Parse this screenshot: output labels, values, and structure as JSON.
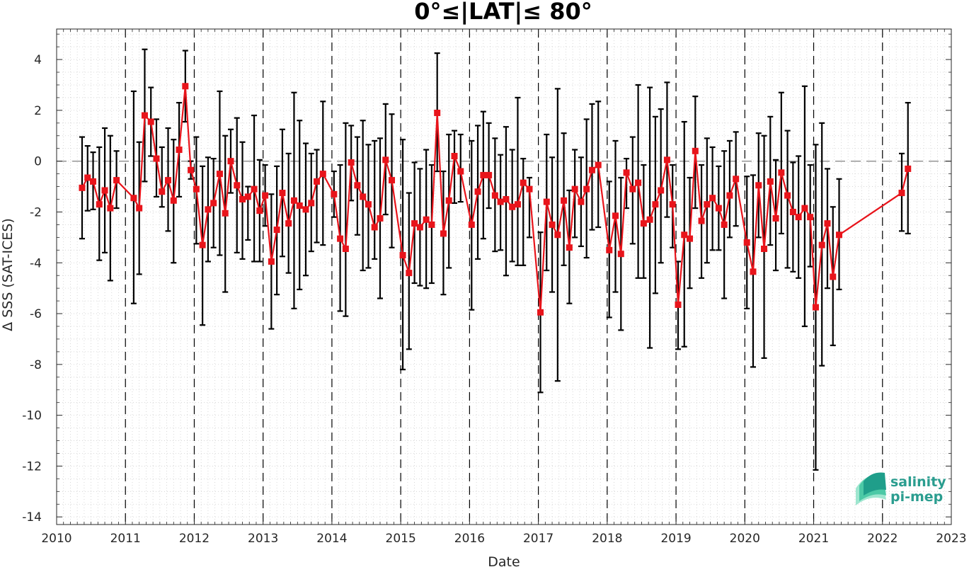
{
  "chart_data": {
    "type": "line",
    "title": "0°≤|LAT|≤ 80°",
    "xlabel": "Date",
    "ylabel": "Δ SSS (SAT-ICES)",
    "xlim": [
      2010,
      2023
    ],
    "ylim": [
      -14.3,
      5.2
    ],
    "x_ticks": [
      "2010",
      "2011",
      "2012",
      "2013",
      "2014",
      "2015",
      "2016",
      "2017",
      "2018",
      "2019",
      "2020",
      "2021",
      "2022",
      "2023"
    ],
    "y_ticks": [
      "4",
      "2",
      "0",
      "-2",
      "-4",
      "-6",
      "-8",
      "-10",
      "-12",
      "-14"
    ],
    "grid": "minor dotted",
    "reference_line": 0,
    "year_separators": [
      2011,
      2012,
      2013,
      2014,
      2015,
      2016,
      2017,
      2018,
      2019,
      2020,
      2021,
      2022
    ],
    "colors": {
      "line": "#e8141b",
      "marker": "#e8141b",
      "errorbar": "#000000",
      "grid": "#cfcfcf"
    },
    "series": [
      {
        "x": [
          2010.37,
          2010.45,
          2010.53,
          2010.62,
          2010.7,
          2010.78,
          2010.87,
          2011.12,
          2011.2,
          2011.28,
          2011.37,
          2011.45,
          2011.53,
          2011.62,
          2011.7,
          2011.78,
          2011.87,
          2011.95,
          2012.03,
          2012.12,
          2012.2,
          2012.28,
          2012.37,
          2012.45,
          2012.53,
          2012.62,
          2012.7,
          2012.78,
          2012.87,
          2012.95,
          2013.03,
          2013.12,
          2013.2,
          2013.28,
          2013.37,
          2013.45,
          2013.53,
          2013.62,
          2013.7,
          2013.78,
          2013.87,
          2014.03,
          2014.12,
          2014.2,
          2014.28,
          2014.37,
          2014.45,
          2014.53,
          2014.62,
          2014.7,
          2014.78,
          2014.87,
          2015.03,
          2015.12,
          2015.2,
          2015.28,
          2015.37,
          2015.45,
          2015.53,
          2015.62,
          2015.7,
          2015.78,
          2015.87,
          2016.03,
          2016.12,
          2016.2,
          2016.28,
          2016.37,
          2016.45,
          2016.53,
          2016.62,
          2016.7,
          2016.78,
          2016.87,
          2017.03,
          2017.12,
          2017.2,
          2017.28,
          2017.37,
          2017.45,
          2017.53,
          2017.62,
          2017.7,
          2017.78,
          2017.87,
          2018.03,
          2018.12,
          2018.2,
          2018.28,
          2018.37,
          2018.45,
          2018.53,
          2018.62,
          2018.7,
          2018.78,
          2018.87,
          2018.95,
          2019.03,
          2019.12,
          2019.2,
          2019.28,
          2019.37,
          2019.45,
          2019.53,
          2019.62,
          2019.7,
          2019.78,
          2019.87,
          2020.03,
          2020.12,
          2020.2,
          2020.28,
          2020.37,
          2020.45,
          2020.53,
          2020.62,
          2020.7,
          2020.78,
          2020.87,
          2020.95,
          2021.03,
          2021.12,
          2021.2,
          2021.28,
          2021.37,
          2022.28,
          2022.37
        ],
        "y": [
          -1.05,
          -0.65,
          -0.8,
          -1.7,
          -1.15,
          -1.85,
          -0.75,
          -1.45,
          -1.85,
          1.8,
          1.55,
          0.1,
          -1.2,
          -0.75,
          -1.55,
          0.45,
          2.95,
          -0.35,
          -1.1,
          -3.3,
          -1.9,
          -1.65,
          -0.5,
          -2.05,
          0.0,
          -0.95,
          -1.5,
          -1.4,
          -1.1,
          -1.95,
          -1.35,
          -3.95,
          -2.7,
          -1.25,
          -2.45,
          -1.55,
          -1.75,
          -1.9,
          -1.65,
          -0.8,
          -0.5,
          -1.3,
          -3.05,
          -3.45,
          -0.05,
          -0.95,
          -1.4,
          -1.7,
          -2.6,
          -2.25,
          0.05,
          -0.75,
          -3.7,
          -4.4,
          -2.45,
          -2.6,
          -2.3,
          -2.5,
          1.9,
          -2.85,
          -1.55,
          0.2,
          -0.4,
          -2.5,
          -1.2,
          -0.55,
          -0.55,
          -1.35,
          -1.6,
          -1.5,
          -1.8,
          -1.7,
          -0.85,
          -1.1,
          -5.95,
          -1.6,
          -2.5,
          -2.9,
          -1.55,
          -3.4,
          -1.1,
          -1.6,
          -1.1,
          -0.35,
          -0.15,
          -3.5,
          -2.15,
          -3.65,
          -0.45,
          -1.1,
          -0.85,
          -2.45,
          -2.3,
          -1.7,
          -1.15,
          0.05,
          -1.7,
          -5.65,
          -2.9,
          -3.05,
          0.4,
          -2.35,
          -1.7,
          -1.45,
          -1.85,
          -2.5,
          -1.35,
          -0.7,
          -3.2,
          -4.35,
          -0.95,
          -3.45,
          -0.8,
          -2.25,
          -0.45,
          -1.35,
          -2.0,
          -2.2,
          -1.85,
          -2.2,
          -5.75,
          -3.3,
          -2.45,
          -4.55,
          -2.9,
          -1.25,
          -0.3
        ],
        "err_low": [
          -3.05,
          -1.95,
          -1.9,
          -3.9,
          -3.6,
          -4.7,
          -1.85,
          -5.6,
          -4.45,
          -0.8,
          0.2,
          -1.4,
          -1.8,
          -2.75,
          -4.0,
          -1.4,
          1.55,
          -0.7,
          -3.25,
          -6.45,
          -3.95,
          -3.4,
          -3.7,
          -5.15,
          -1.25,
          -3.6,
          -3.85,
          -3.1,
          -3.95,
          -3.95,
          -2.55,
          -6.6,
          -5.25,
          -3.75,
          -4.4,
          -5.8,
          -5.05,
          -4.5,
          -3.55,
          -3.2,
          -3.3,
          -2.2,
          -5.9,
          -6.1,
          -1.55,
          -2.9,
          -4.3,
          -4.2,
          -3.85,
          -5.4,
          -2.1,
          -3.4,
          -8.2,
          -7.4,
          -4.8,
          -4.9,
          -5.0,
          -4.8,
          -0.4,
          -5.25,
          -4.2,
          -1.65,
          -1.6,
          -5.85,
          -3.85,
          -3.05,
          -1.85,
          -3.55,
          -3.5,
          -4.5,
          -3.95,
          -4.1,
          -4.1,
          -3.0,
          -9.1,
          -4.3,
          -5.15,
          -8.65,
          -4.1,
          -5.6,
          -3.0,
          -3.35,
          -3.8,
          -2.7,
          -2.6,
          -6.15,
          -5.15,
          -6.65,
          -1.85,
          -3.25,
          -4.6,
          -4.6,
          -7.35,
          -5.2,
          -4.0,
          -2.2,
          -3.4,
          -7.4,
          -7.3,
          -5.0,
          -1.85,
          -4.6,
          -4.0,
          -3.5,
          -3.5,
          -5.4,
          -3.0,
          -2.55,
          -5.8,
          -8.1,
          -3.0,
          -7.75,
          -3.3,
          -4.3,
          -2.85,
          -4.2,
          -4.35,
          -4.6,
          -6.5,
          -4.15,
          -12.15,
          -8.05,
          -5.0,
          -7.25,
          -5.05,
          -2.75,
          -2.85
        ],
        "err_high": [
          0.95,
          0.6,
          0.35,
          0.55,
          1.3,
          1.0,
          0.4,
          2.75,
          0.75,
          4.4,
          2.9,
          1.65,
          0.55,
          1.3,
          0.85,
          2.3,
          4.35,
          0.0,
          0.95,
          -0.2,
          0.15,
          0.1,
          2.75,
          1.0,
          1.25,
          1.7,
          0.75,
          -1.0,
          1.8,
          0.05,
          -0.15,
          -1.3,
          -0.2,
          1.25,
          0.3,
          2.7,
          1.6,
          0.7,
          0.3,
          0.45,
          2.35,
          -0.4,
          -0.15,
          1.5,
          1.4,
          0.95,
          1.6,
          0.65,
          0.8,
          0.9,
          2.25,
          1.85,
          0.85,
          -1.25,
          -0.05,
          -0.3,
          0.45,
          -0.15,
          4.25,
          -0.4,
          1.05,
          1.2,
          1.05,
          0.8,
          1.4,
          1.95,
          1.5,
          0.9,
          0.25,
          1.35,
          0.45,
          2.5,
          0.1,
          -0.65,
          -2.8,
          1.05,
          0.15,
          2.85,
          1.1,
          -1.15,
          0.45,
          0.15,
          1.65,
          2.25,
          2.35,
          -0.8,
          0.8,
          -0.65,
          0.1,
          0.95,
          3.0,
          -0.15,
          2.9,
          1.75,
          2.05,
          3.1,
          -0.15,
          -3.95,
          1.55,
          -0.65,
          2.55,
          -0.15,
          0.9,
          0.55,
          -0.2,
          0.4,
          0.8,
          1.15,
          -0.6,
          -0.55,
          1.1,
          1.0,
          1.75,
          0.05,
          2.7,
          1.2,
          -0.05,
          0.2,
          2.95,
          -0.15,
          0.65,
          1.5,
          -0.3,
          -1.8,
          -0.7,
          0.3,
          2.3
        ]
      }
    ]
  },
  "logo": {
    "line1": "salinity",
    "line2": "pi-mep",
    "colors": [
      "#1f9e8a",
      "#4cc9a6",
      "#9ee6cf"
    ]
  }
}
